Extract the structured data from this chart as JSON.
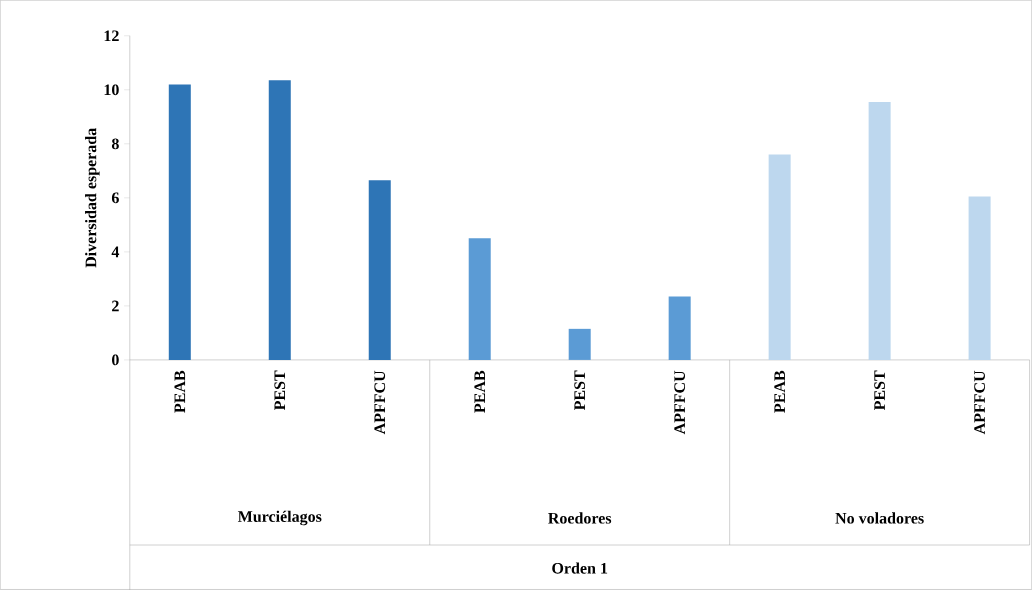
{
  "chart_data": {
    "type": "bar",
    "categories": [
      "PEAB",
      "PEST",
      "APFFCU",
      "PEAB",
      "PEST",
      "APFFCU",
      "PEAB",
      "PEST",
      "APFFCU"
    ],
    "values": [
      10.2,
      10.35,
      6.65,
      4.5,
      1.15,
      2.35,
      7.6,
      9.55,
      6.05
    ],
    "colors": [
      "#2e75b6",
      "#2e75b6",
      "#2e75b6",
      "#5b9bd5",
      "#5b9bd5",
      "#5b9bd5",
      "#bdd7ee",
      "#bdd7ee",
      "#bdd7ee"
    ],
    "ylabel": "Diversidad esperada",
    "annotations": [
      "Murciélagos",
      "Roedores",
      "No voladores",
      "Orden 1"
    ],
    "ylim": [
      0,
      12
    ],
    "yticks": [
      0,
      2,
      4,
      6,
      8,
      10,
      12
    ],
    "grid": false
  }
}
